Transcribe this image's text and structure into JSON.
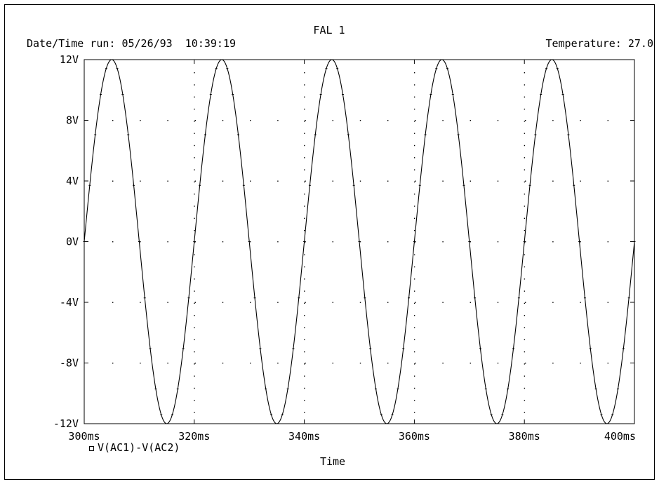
{
  "header": {
    "title": "FAL 1",
    "run_label": "Date/Time run: 05/26/93  10:39:19",
    "temperature_label": "Temperature: 27.0"
  },
  "chart_data": {
    "type": "line",
    "title": "FAL 1",
    "xlabel": "Time",
    "ylabel": "",
    "x_ticks": [
      {
        "value": 300,
        "label": "300ms"
      },
      {
        "value": 320,
        "label": "320ms"
      },
      {
        "value": 340,
        "label": "340ms"
      },
      {
        "value": 360,
        "label": "360ms"
      },
      {
        "value": 380,
        "label": "380ms"
      },
      {
        "value": 400,
        "label": "400ms"
      }
    ],
    "y_ticks": [
      {
        "value": 12,
        "label": "12V"
      },
      {
        "value": 8,
        "label": "8V"
      },
      {
        "value": 4,
        "label": "4V"
      },
      {
        "value": 0,
        "label": "0V"
      },
      {
        "value": -4,
        "label": "-4V"
      },
      {
        "value": -8,
        "label": "-8V"
      },
      {
        "value": -12,
        "label": "-12V"
      }
    ],
    "xlim": [
      300,
      400
    ],
    "ylim": [
      -12,
      12
    ],
    "grid": "dotted",
    "legend_position": "bottom-left",
    "series": [
      {
        "name": "V(AC1)-V(AC2)",
        "marker": "square",
        "waveform": "sine",
        "amplitude": 12,
        "period": 20,
        "phase_zero_at": 300,
        "x": [
          300,
          301,
          302,
          303,
          304,
          305,
          306,
          307,
          308,
          309,
          310,
          311,
          312,
          313,
          314,
          315,
          316,
          317,
          318,
          319,
          320,
          321,
          322,
          323,
          324,
          325,
          326,
          327,
          328,
          329,
          330,
          331,
          332,
          333,
          334,
          335,
          336,
          337,
          338,
          339,
          340,
          341,
          342,
          343,
          344,
          345,
          346,
          347,
          348,
          349,
          350,
          351,
          352,
          353,
          354,
          355,
          356,
          357,
          358,
          359,
          360,
          361,
          362,
          363,
          364,
          365,
          366,
          367,
          368,
          369,
          370,
          371,
          372,
          373,
          374,
          375,
          376,
          377,
          378,
          379,
          380,
          381,
          382,
          383,
          384,
          385,
          386,
          387,
          388,
          389,
          390,
          391,
          392,
          393,
          394,
          395,
          396,
          397,
          398,
          399,
          400
        ],
        "y": [
          0,
          3.71,
          7.05,
          9.71,
          11.41,
          12,
          11.41,
          9.71,
          7.05,
          3.71,
          0,
          -3.71,
          -7.05,
          -9.71,
          -11.41,
          -12,
          -11.41,
          -9.71,
          -7.05,
          -3.71,
          0,
          3.71,
          7.05,
          9.71,
          11.41,
          12,
          11.41,
          9.71,
          7.05,
          3.71,
          0,
          -3.71,
          -7.05,
          -9.71,
          -11.41,
          -12,
          -11.41,
          -9.71,
          -7.05,
          -3.71,
          0,
          3.71,
          7.05,
          9.71,
          11.41,
          12,
          11.41,
          9.71,
          7.05,
          3.71,
          0,
          -3.71,
          -7.05,
          -9.71,
          -11.41,
          -12,
          -11.41,
          -9.71,
          -7.05,
          -3.71,
          0,
          3.71,
          7.05,
          9.71,
          11.41,
          12,
          11.41,
          9.71,
          7.05,
          3.71,
          0,
          -3.71,
          -7.05,
          -9.71,
          -11.41,
          -12,
          -11.41,
          -9.71,
          -7.05,
          -3.71,
          0,
          3.71,
          7.05,
          9.71,
          11.41,
          12,
          11.41,
          9.71,
          7.05,
          3.71,
          0,
          -3.71,
          -7.05,
          -9.71,
          -11.41,
          -12,
          -11.41,
          -9.71,
          -7.05,
          -3.71,
          0
        ]
      }
    ]
  }
}
